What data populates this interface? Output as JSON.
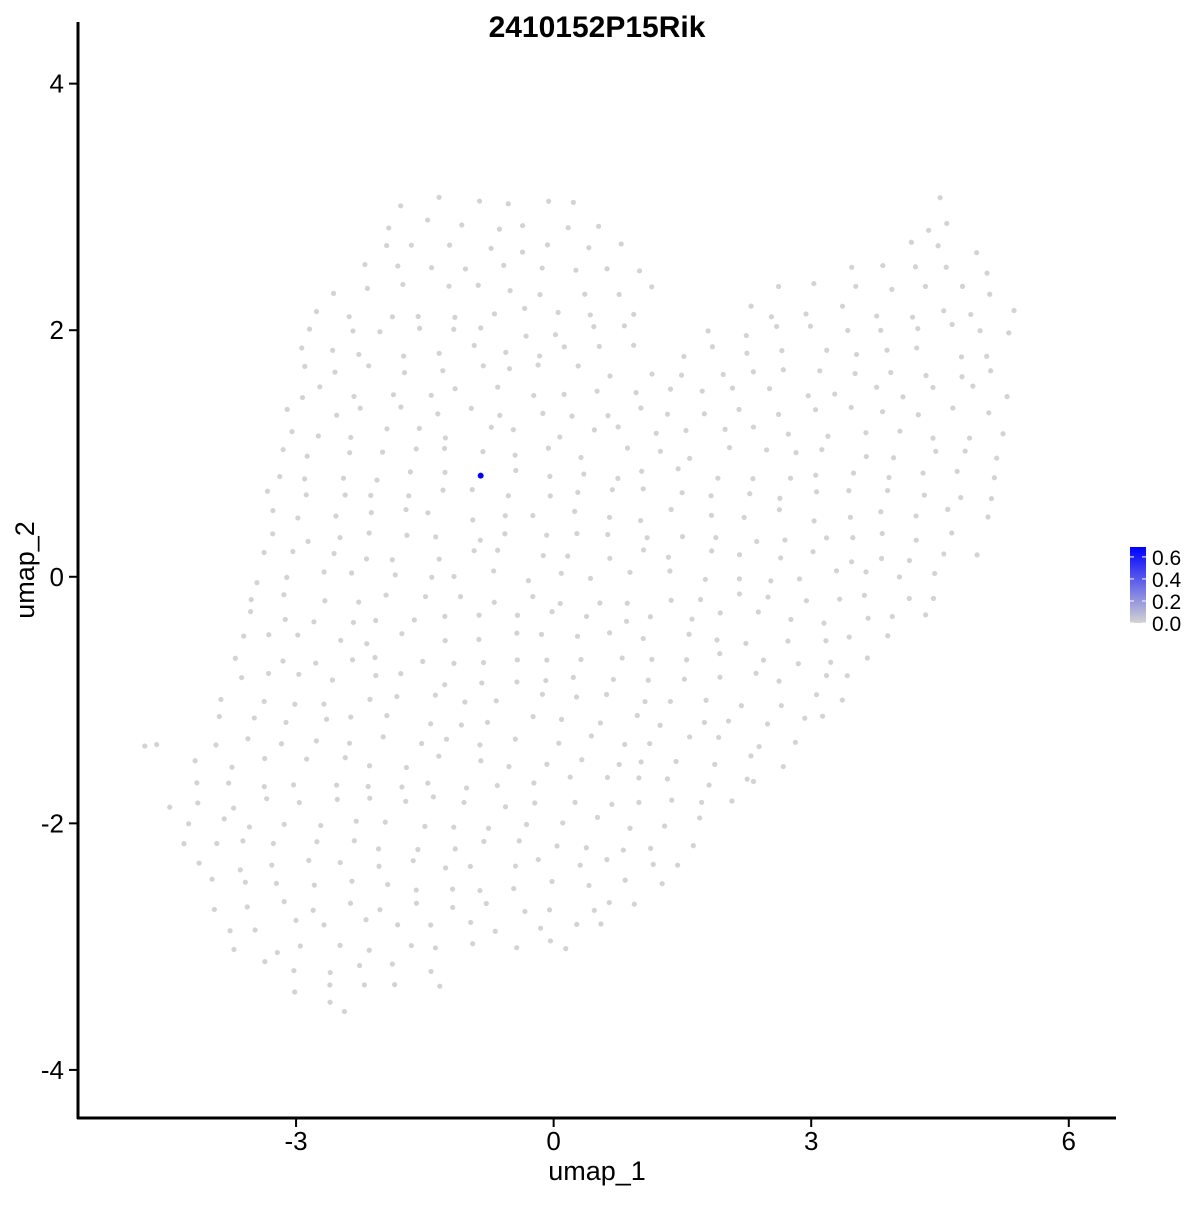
{
  "chart_data": {
    "type": "scatter",
    "title": "2410152P15Rik",
    "xlabel": "umap_1",
    "ylabel": "umap_2",
    "xlim": [
      -5.54,
      6.55
    ],
    "ylim": [
      -4.39,
      4.5
    ],
    "xticks": [
      -3,
      0,
      3,
      6
    ],
    "yticks": [
      -4,
      -2,
      0,
      2,
      4
    ],
    "grid": false,
    "legend": {
      "placement": "right",
      "type": "colorbar",
      "min": 0.0,
      "max": 0.69,
      "ticks": [
        "0.0",
        "0.2",
        "0.4",
        "0.6"
      ],
      "tick_values": [
        0.0,
        0.2,
        0.4,
        0.6
      ],
      "low_color": "#d3d3d3",
      "high_color": "#0000ff"
    },
    "point_color_default": "#d3d3d3",
    "rows": [
      {
        "y": 3.05,
        "x": [
          -1.7,
          -1.3,
          -0.9,
          -0.5,
          -0.1,
          0.2,
          4.45
        ]
      },
      {
        "y": 2.85,
        "x": [
          -1.9,
          -1.5,
          -1.1,
          -0.7,
          -0.3,
          0.1,
          0.5,
          4.3,
          4.6
        ]
      },
      {
        "y": 2.67,
        "x": [
          -2.0,
          -1.6,
          -1.2,
          -0.8,
          -0.4,
          0.0,
          0.4,
          0.8,
          4.1,
          4.5,
          4.9
        ]
      },
      {
        "y": 2.5,
        "x": [
          -2.2,
          -1.8,
          -1.4,
          -1.0,
          -0.6,
          -0.2,
          0.2,
          0.6,
          1.0,
          3.4,
          3.8,
          4.2,
          4.6,
          5.0
        ]
      },
      {
        "y": 2.33,
        "x": [
          -2.5,
          -2.1,
          -1.7,
          -1.3,
          -0.9,
          -0.5,
          -0.1,
          0.3,
          0.7,
          1.1,
          2.7,
          3.1,
          3.5,
          3.9,
          4.3,
          4.7,
          5.1
        ]
      },
      {
        "y": 2.15,
        "x": [
          -2.7,
          -2.3,
          -1.9,
          -1.5,
          -1.1,
          -0.7,
          -0.3,
          0.1,
          0.5,
          0.9,
          2.3,
          2.6,
          3.0,
          3.3,
          3.7,
          4.1,
          4.5,
          4.9,
          5.3
        ]
      },
      {
        "y": 2.0,
        "x": [
          -2.8,
          -2.4,
          -2.0,
          -1.6,
          -1.2,
          -0.8,
          -0.4,
          0.0,
          0.4,
          0.8,
          1.8,
          2.2,
          2.6,
          3.0,
          3.4,
          3.8,
          4.2,
          4.6,
          5.0,
          5.35
        ]
      },
      {
        "y": 1.83,
        "x": [
          -2.9,
          -2.6,
          -2.2,
          -1.8,
          -1.4,
          -1.0,
          -0.6,
          -0.2,
          0.2,
          0.6,
          1.0,
          1.5,
          1.9,
          2.3,
          2.7,
          3.1,
          3.5,
          3.9,
          4.3,
          4.7,
          5.1
        ]
      },
      {
        "y": 1.67,
        "x": [
          -2.9,
          -2.5,
          -2.1,
          -1.7,
          -1.3,
          -0.9,
          -0.5,
          -0.1,
          0.3,
          0.7,
          1.1,
          1.5,
          1.9,
          2.3,
          2.7,
          3.1,
          3.5,
          3.9,
          4.3,
          4.7,
          5.1
        ]
      },
      {
        "y": 1.5,
        "x": [
          -3.0,
          -2.7,
          -2.3,
          -1.9,
          -1.5,
          -1.1,
          -0.7,
          -0.3,
          0.1,
          0.5,
          0.9,
          1.3,
          1.7,
          2.1,
          2.5,
          2.9,
          3.3,
          3.7,
          4.1,
          4.5,
          4.9,
          5.25
        ]
      },
      {
        "y": 1.33,
        "x": [
          -3.05,
          -2.6,
          -2.2,
          -1.8,
          -1.4,
          -1.0,
          -0.6,
          -0.2,
          0.2,
          0.6,
          1.0,
          1.4,
          1.8,
          2.2,
          2.6,
          3.0,
          3.4,
          3.8,
          4.2,
          4.6,
          5.0
        ]
      },
      {
        "y": 1.17,
        "x": [
          -3.1,
          -2.8,
          -2.4,
          -2.0,
          -1.6,
          -1.2,
          -0.8,
          -0.4,
          0.0,
          0.4,
          0.8,
          1.2,
          1.6,
          2.0,
          2.4,
          2.8,
          3.2,
          3.6,
          4.0,
          4.4,
          4.8,
          5.2
        ]
      },
      {
        "y": 1.0,
        "x": [
          -3.2,
          -2.8,
          -2.4,
          -2.0,
          -1.6,
          -1.2,
          -0.8,
          -0.4,
          0.0,
          0.4,
          0.8,
          1.2,
          1.6,
          2.0,
          2.4,
          2.8,
          3.2,
          3.6,
          4.0,
          4.4,
          4.8,
          5.2
        ]
      },
      {
        "y": 0.83,
        "x": [
          -3.25,
          -2.9,
          -2.5,
          -2.1,
          -1.7,
          -1.3,
          -0.5,
          -0.1,
          0.3,
          0.7,
          1.1,
          1.5,
          1.9,
          2.3,
          2.7,
          3.1,
          3.5,
          3.9,
          4.3,
          4.7,
          5.1
        ]
      },
      {
        "y": 0.67,
        "x": [
          -3.3,
          -2.9,
          -2.5,
          -2.1,
          -1.7,
          -1.3,
          -0.9,
          -0.5,
          -0.1,
          0.3,
          0.7,
          1.1,
          1.5,
          1.9,
          2.3,
          2.7,
          3.1,
          3.5,
          3.9,
          4.3,
          4.7,
          5.1
        ]
      },
      {
        "y": 0.5,
        "x": [
          -3.3,
          -3.0,
          -2.6,
          -2.2,
          -1.8,
          -1.4,
          -1.0,
          -0.6,
          -0.2,
          0.2,
          0.6,
          1.0,
          1.4,
          1.8,
          2.2,
          2.6,
          3.0,
          3.4,
          3.8,
          4.2,
          4.6,
          5.0
        ]
      },
      {
        "y": 0.33,
        "x": [
          -3.35,
          -2.9,
          -2.5,
          -2.1,
          -1.7,
          -1.3,
          -0.9,
          -0.5,
          -0.1,
          0.3,
          0.7,
          1.1,
          1.5,
          1.9,
          2.3,
          2.7,
          3.1,
          3.5,
          3.9,
          4.3,
          4.7
        ]
      },
      {
        "y": 0.17,
        "x": [
          -3.4,
          -3.0,
          -2.6,
          -2.2,
          -1.8,
          -1.4,
          -1.0,
          -0.6,
          -0.2,
          0.2,
          0.6,
          1.0,
          1.4,
          1.8,
          2.2,
          2.6,
          3.0,
          3.4,
          3.8,
          4.2,
          4.6,
          4.9
        ]
      },
      {
        "y": 0.0,
        "x": [
          -3.45,
          -3.1,
          -2.7,
          -2.3,
          -1.9,
          -1.5,
          -1.1,
          -0.7,
          -0.3,
          0.1,
          0.5,
          0.9,
          1.3,
          1.7,
          2.1,
          2.5,
          2.9,
          3.3,
          3.7,
          4.1,
          4.5
        ]
      },
      {
        "y": -0.17,
        "x": [
          -3.5,
          -3.1,
          -2.7,
          -2.3,
          -1.9,
          -1.5,
          -1.1,
          -0.7,
          -0.3,
          0.1,
          0.5,
          0.9,
          1.3,
          1.7,
          2.1,
          2.5,
          2.9,
          3.3,
          3.7,
          4.1,
          4.5
        ]
      },
      {
        "y": -0.33,
        "x": [
          -3.6,
          -3.2,
          -2.8,
          -2.4,
          -2.0,
          -1.6,
          -1.2,
          -0.8,
          -0.4,
          0.0,
          0.4,
          0.8,
          1.2,
          1.6,
          2.0,
          2.4,
          2.8,
          3.2,
          3.6,
          4.0,
          4.3
        ]
      },
      {
        "y": -0.5,
        "x": [
          -3.6,
          -3.3,
          -2.9,
          -2.5,
          -2.1,
          -1.7,
          -1.3,
          -0.9,
          -0.5,
          -0.1,
          0.3,
          0.7,
          1.1,
          1.5,
          1.9,
          2.3,
          2.7,
          3.1,
          3.5,
          3.9
        ]
      },
      {
        "y": -0.67,
        "x": [
          -3.65,
          -3.2,
          -2.8,
          -2.4,
          -2.0,
          -1.6,
          -1.2,
          -0.8,
          -0.4,
          0.0,
          0.4,
          0.8,
          1.2,
          1.6,
          2.0,
          2.4,
          2.8,
          3.2,
          3.6
        ]
      },
      {
        "y": -0.83,
        "x": [
          -3.7,
          -3.3,
          -2.9,
          -2.5,
          -2.1,
          -1.7,
          -1.3,
          -0.9,
          -0.5,
          -0.1,
          0.3,
          0.7,
          1.1,
          1.5,
          1.9,
          2.3,
          2.7,
          3.1,
          3.5
        ]
      },
      {
        "y": -1.0,
        "x": [
          -3.8,
          -3.4,
          -3.0,
          -2.6,
          -2.2,
          -1.8,
          -1.4,
          -1.0,
          -0.6,
          -0.2,
          0.2,
          0.6,
          1.0,
          1.4,
          1.8,
          2.2,
          2.6,
          3.0,
          3.4
        ]
      },
      {
        "y": -1.17,
        "x": [
          -3.9,
          -3.5,
          -3.1,
          -2.7,
          -2.3,
          -1.9,
          -1.5,
          -1.1,
          -0.7,
          -0.3,
          0.1,
          0.5,
          0.9,
          1.3,
          1.7,
          2.1,
          2.5,
          2.9,
          3.2
        ]
      },
      {
        "y": -1.33,
        "x": [
          -4.75,
          -4.65,
          -4.0,
          -3.6,
          -3.2,
          -2.8,
          -2.4,
          -2.0,
          -1.6,
          -1.2,
          -0.8,
          -0.4,
          0.0,
          0.4,
          0.8,
          1.2,
          1.6,
          2.0,
          2.4,
          2.8
        ]
      },
      {
        "y": -1.5,
        "x": [
          -4.1,
          -3.7,
          -3.3,
          -2.9,
          -2.5,
          -2.1,
          -1.7,
          -1.3,
          -0.9,
          -0.5,
          -0.1,
          0.3,
          0.7,
          1.1,
          1.5,
          1.9,
          2.3,
          2.6
        ]
      },
      {
        "y": -1.67,
        "x": [
          -4.2,
          -3.8,
          -3.4,
          -3.0,
          -2.6,
          -2.2,
          -1.8,
          -1.4,
          -1.0,
          -0.6,
          -0.2,
          0.2,
          0.6,
          1.0,
          1.4,
          1.8,
          2.2,
          2.4
        ]
      },
      {
        "y": -1.83,
        "x": [
          -4.4,
          -4.2,
          -3.8,
          -3.4,
          -3.0,
          -2.6,
          -2.2,
          -1.8,
          -1.4,
          -1.0,
          -0.6,
          -0.2,
          0.2,
          0.6,
          1.0,
          1.4,
          1.8,
          2.1
        ]
      },
      {
        "y": -2.0,
        "x": [
          -4.3,
          -3.9,
          -3.5,
          -3.1,
          -2.7,
          -2.3,
          -1.9,
          -1.5,
          -1.1,
          -0.7,
          -0.3,
          0.1,
          0.5,
          0.9,
          1.3,
          1.7
        ]
      },
      {
        "y": -2.17,
        "x": [
          -4.3,
          -4.0,
          -3.6,
          -3.2,
          -2.8,
          -2.4,
          -2.0,
          -1.6,
          -1.2,
          -0.8,
          -0.4,
          0.0,
          0.4,
          0.8,
          1.2,
          1.6
        ]
      },
      {
        "y": -2.33,
        "x": [
          -4.1,
          -3.7,
          -3.3,
          -2.9,
          -2.5,
          -2.1,
          -1.7,
          -1.3,
          -0.9,
          -0.5,
          -0.1,
          0.3,
          0.7,
          1.1,
          1.5
        ]
      },
      {
        "y": -2.5,
        "x": [
          -4.0,
          -3.6,
          -3.2,
          -2.8,
          -2.4,
          -2.0,
          -1.6,
          -1.2,
          -0.8,
          -0.4,
          0.0,
          0.4,
          0.8,
          1.2
        ]
      },
      {
        "y": -2.67,
        "x": [
          -4.0,
          -3.6,
          -3.2,
          -2.8,
          -2.4,
          -2.0,
          -1.6,
          -1.2,
          -0.8,
          -0.4,
          0.0,
          0.4,
          0.7,
          1.0
        ]
      },
      {
        "y": -2.83,
        "x": [
          -3.8,
          -3.4,
          -3.0,
          -2.6,
          -2.2,
          -1.8,
          -1.4,
          -1.0,
          -0.6,
          -0.2,
          0.2,
          0.6
        ]
      },
      {
        "y": -3.0,
        "x": [
          -3.65,
          -3.3,
          -2.9,
          -2.5,
          -2.1,
          -1.7,
          -1.3,
          -0.9,
          -0.5,
          -0.1,
          0.1
        ]
      },
      {
        "y": -3.17,
        "x": [
          -3.4,
          -3.0,
          -2.6,
          -2.2,
          -1.8,
          -1.45
        ]
      },
      {
        "y": -3.33,
        "x": [
          -2.95,
          -2.6,
          -2.2,
          -1.9,
          -1.3
        ]
      },
      {
        "y": -3.48,
        "x": [
          -2.55,
          -2.4
        ]
      }
    ],
    "highlighted_points": [
      {
        "x": -0.85,
        "y": 0.82,
        "value": 0.69,
        "color": "#0000ff"
      }
    ]
  }
}
